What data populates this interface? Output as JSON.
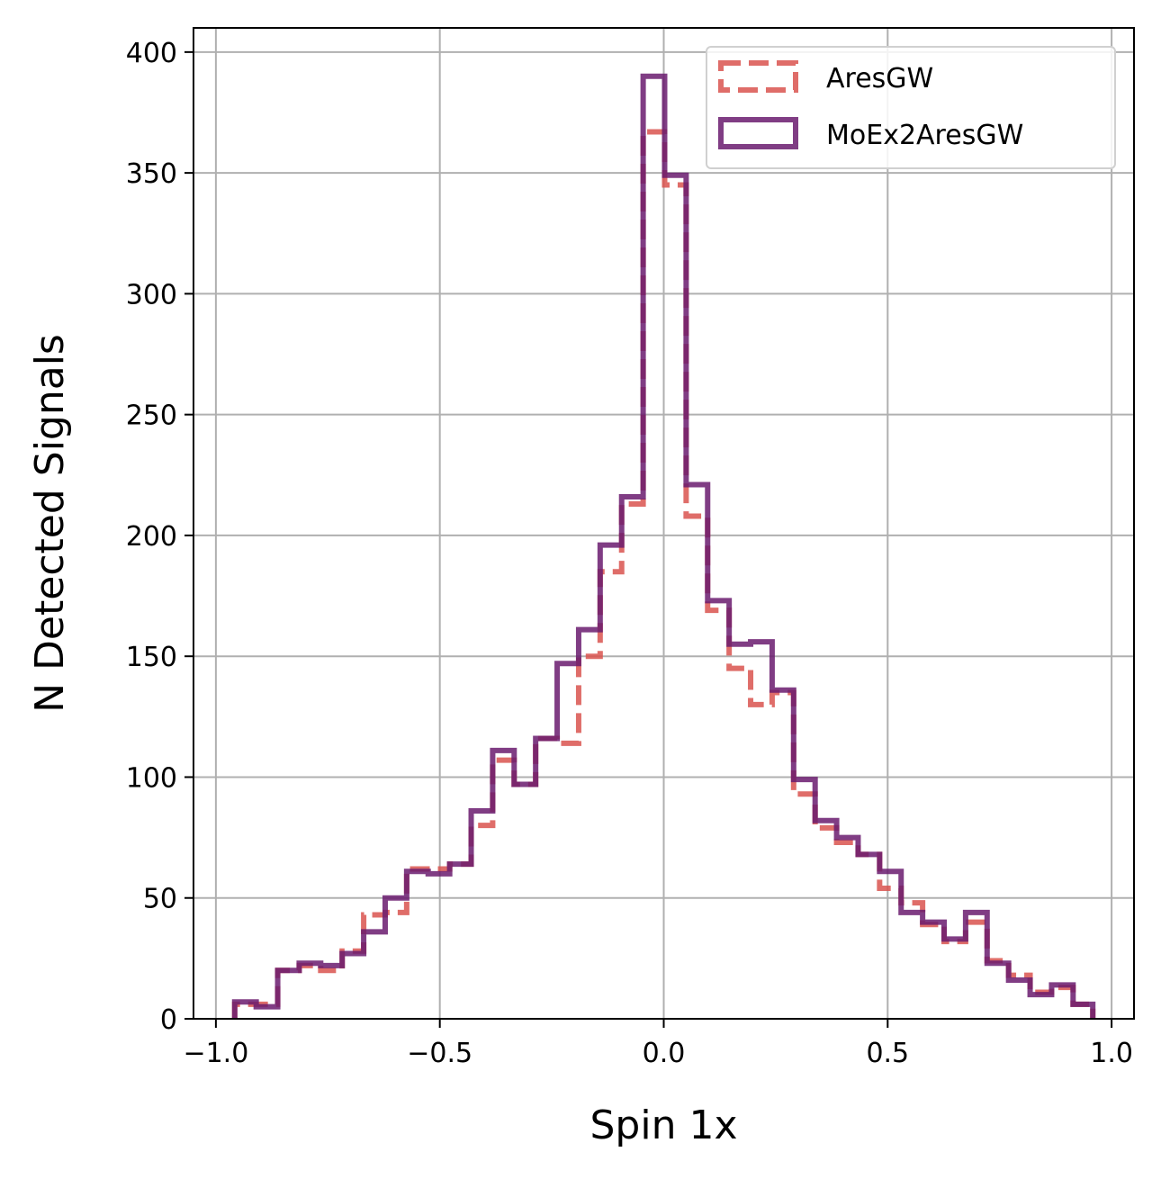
{
  "chart_data": {
    "type": "histogram",
    "xlabel": "Spin 1x",
    "ylabel": "N Detected Signals",
    "xlim": [
      -1.05,
      1.05
    ],
    "ylim": [
      0,
      410
    ],
    "grid": true,
    "legend_position": "top-right",
    "x_ticks": [
      -1.0,
      -0.5,
      0.0,
      0.5,
      1.0
    ],
    "x_tick_labels": [
      "−1.0",
      "−0.5",
      "0.0",
      "0.5",
      "1.0"
    ],
    "y_ticks": [
      0,
      50,
      100,
      150,
      200,
      250,
      300,
      350,
      400
    ],
    "y_tick_labels": [
      "0",
      "50",
      "100",
      "150",
      "200",
      "250",
      "300",
      "350",
      "400"
    ],
    "bin_edges": [
      -0.958,
      -0.91,
      -0.862,
      -0.814,
      -0.766,
      -0.718,
      -0.67,
      -0.622,
      -0.574,
      -0.526,
      -0.478,
      -0.43,
      -0.382,
      -0.334,
      -0.286,
      -0.238,
      -0.19,
      -0.142,
      -0.094,
      -0.046,
      0.002,
      0.05,
      0.098,
      0.146,
      0.194,
      0.242,
      0.29,
      0.338,
      0.386,
      0.434,
      0.482,
      0.53,
      0.578,
      0.626,
      0.674,
      0.722,
      0.77,
      0.818,
      0.866,
      0.914,
      0.958
    ],
    "series": [
      {
        "name": "AresGW",
        "style": "dashed",
        "color": "#d9534f",
        "counts": [
          6,
          6,
          20,
          22,
          20,
          28,
          43,
          44,
          62,
          62,
          64,
          80,
          107,
          97,
          116,
          114,
          150,
          185,
          213,
          367,
          345,
          208,
          169,
          145,
          130,
          135,
          93,
          79,
          73,
          68,
          54,
          48,
          39,
          32,
          40,
          24,
          18,
          11,
          13,
          6
        ]
      },
      {
        "name": "MoEx2AresGW",
        "style": "solid",
        "color": "#6a1b6e",
        "counts": [
          7,
          5,
          20,
          23,
          22,
          27,
          36,
          50,
          61,
          60,
          64,
          86,
          111,
          97,
          116,
          147,
          161,
          196,
          216,
          390,
          349,
          221,
          173,
          155,
          156,
          136,
          99,
          82,
          75,
          68,
          61,
          44,
          40,
          33,
          44,
          23,
          16,
          10,
          14,
          6
        ]
      }
    ]
  }
}
